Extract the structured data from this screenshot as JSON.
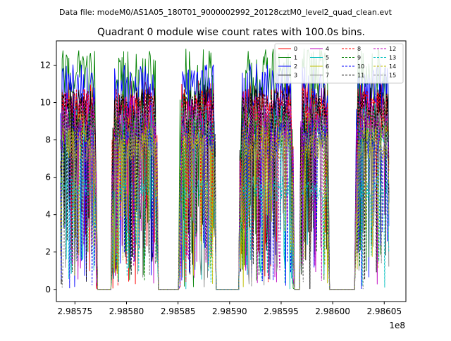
{
  "chart_data": {
    "type": "line",
    "suptitle": "Data file: modeM0/AS1A05_180T01_9000002992_20128cztM0_level2_quad_clean.evt",
    "title": "Quadrant 0 module wise count rates with 100.0s bins.",
    "xlabel": "",
    "ylabel": "",
    "x_offset_label": "1e8",
    "xlim": [
      2.985732,
      2.986071
    ],
    "ylim": [
      -0.65,
      13.3
    ],
    "x_ticks": [
      2.98575,
      2.9858,
      2.98585,
      2.9859,
      2.98595,
      2.986,
      2.98605
    ],
    "x_tick_labels": [
      "2.98575",
      "2.98580",
      "2.98585",
      "2.98590",
      "2.98595",
      "2.98600",
      "2.98605"
    ],
    "y_ticks": [
      0,
      2,
      4,
      6,
      8,
      10,
      12
    ],
    "y_tick_labels": [
      "0",
      "2",
      "4",
      "6",
      "8",
      "10",
      "12"
    ],
    "grid": false,
    "legend_position": "top-right",
    "segments": [
      {
        "x_start": 2.985736,
        "x_end": 2.985771,
        "state": "active"
      },
      {
        "x_start": 2.985772,
        "x_end": 2.985785,
        "state": "zero"
      },
      {
        "x_start": 2.985786,
        "x_end": 2.98583,
        "state": "active"
      },
      {
        "x_start": 2.985831,
        "x_end": 2.985851,
        "state": "zero"
      },
      {
        "x_start": 2.985852,
        "x_end": 2.985886,
        "state": "active"
      },
      {
        "x_start": 2.985887,
        "x_end": 2.985909,
        "state": "zero"
      },
      {
        "x_start": 2.98591,
        "x_end": 2.985962,
        "state": "active"
      },
      {
        "x_start": 2.985963,
        "x_end": 2.985968,
        "state": "zero"
      },
      {
        "x_start": 2.985969,
        "x_end": 2.985996,
        "state": "active"
      },
      {
        "x_start": 2.985997,
        "x_end": 2.986022,
        "state": "zero"
      },
      {
        "x_start": 2.986023,
        "x_end": 2.986055,
        "state": "active"
      }
    ],
    "series": [
      {
        "name": "0",
        "color": "#ff0000",
        "dash": "solid",
        "mean": 10.0
      },
      {
        "name": "1",
        "color": "#008000",
        "dash": "solid",
        "mean": 11.5
      },
      {
        "name": "2",
        "color": "#0000ff",
        "dash": "solid",
        "mean": 10.8
      },
      {
        "name": "3",
        "color": "#000000",
        "dash": "solid",
        "mean": 9.8
      },
      {
        "name": "4",
        "color": "#bf00bf",
        "dash": "solid",
        "mean": 9.4
      },
      {
        "name": "5",
        "color": "#00bfbf",
        "dash": "solid",
        "mean": 8.9
      },
      {
        "name": "6",
        "color": "#bfbf00",
        "dash": "solid",
        "mean": 8.5
      },
      {
        "name": "7",
        "color": "#808080",
        "dash": "solid",
        "mean": 8.9
      },
      {
        "name": "8",
        "color": "#ff0000",
        "dash": "dashed",
        "mean": 9.6
      },
      {
        "name": "9",
        "color": "#008000",
        "dash": "dashed",
        "mean": 8.6
      },
      {
        "name": "10",
        "color": "#0000ff",
        "dash": "dashed",
        "mean": 8.2
      },
      {
        "name": "11",
        "color": "#000000",
        "dash": "dashed",
        "mean": 9.5
      },
      {
        "name": "12",
        "color": "#bf00bf",
        "dash": "dashed",
        "mean": 8.8
      },
      {
        "name": "13",
        "color": "#00bfbf",
        "dash": "dashed",
        "mean": 5.4
      },
      {
        "name": "14",
        "color": "#bfbf00",
        "dash": "dashed",
        "mean": 7.8
      },
      {
        "name": "15",
        "color": "#808080",
        "dash": "dashed",
        "mean": 7.6
      }
    ]
  }
}
